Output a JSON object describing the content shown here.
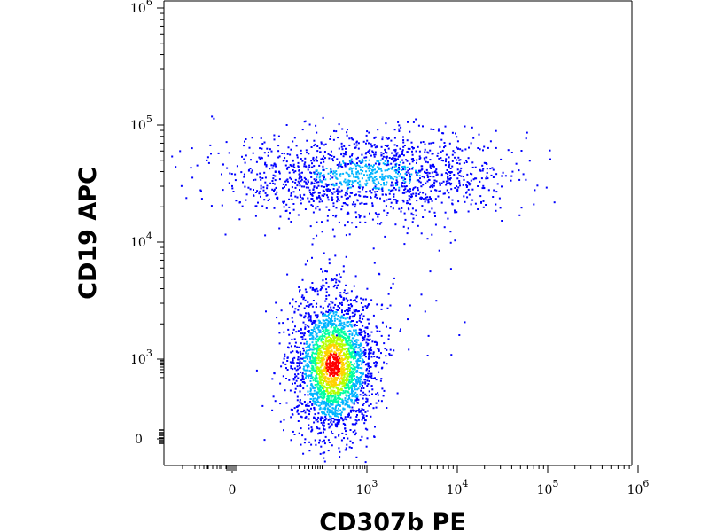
{
  "chart_data": {
    "type": "scatter",
    "subtype": "flow-cytometry density dot plot (pseudocolor)",
    "xlabel": "CD307b PE",
    "ylabel": "CD19 APC",
    "x_scale": "biexponential (linear near 0, log above)",
    "y_scale": "biexponential (linear near 0, log above)",
    "xlim": [
      -200,
      1000000
    ],
    "ylim": [
      -100,
      1000000
    ],
    "x_ticks": [
      {
        "value": 0,
        "base": "0",
        "exp": ""
      },
      {
        "value": 1000,
        "base": "10",
        "exp": "3"
      },
      {
        "value": 10000,
        "base": "10",
        "exp": "4"
      },
      {
        "value": 100000,
        "base": "10",
        "exp": "5"
      },
      {
        "value": 1000000,
        "base": "10",
        "exp": "6"
      }
    ],
    "y_ticks": [
      {
        "value": 0,
        "base": "0",
        "exp": ""
      },
      {
        "value": 1000,
        "base": "10",
        "exp": "3"
      },
      {
        "value": 10000,
        "base": "10",
        "exp": "4"
      },
      {
        "value": 100000,
        "base": "10",
        "exp": "5"
      },
      {
        "value": 1000000,
        "base": "10",
        "exp": "6"
      }
    ],
    "color_scale": [
      "#0000ff",
      "#00b4ff",
      "#00ffa0",
      "#b4ff00",
      "#ffd200",
      "#ff0000"
    ],
    "grid": false,
    "legend": "none",
    "populations": [
      {
        "center_x": 170,
        "center_y": 650,
        "spread_x": 0.25,
        "spread_y": 0.32,
        "n_events": 2600,
        "peak_density": "high"
      },
      {
        "center_x": 900,
        "center_y": 38000,
        "spread_x": 0.75,
        "spread_y": 0.18,
        "n_events": 1500,
        "peak_density": "low"
      }
    ]
  }
}
